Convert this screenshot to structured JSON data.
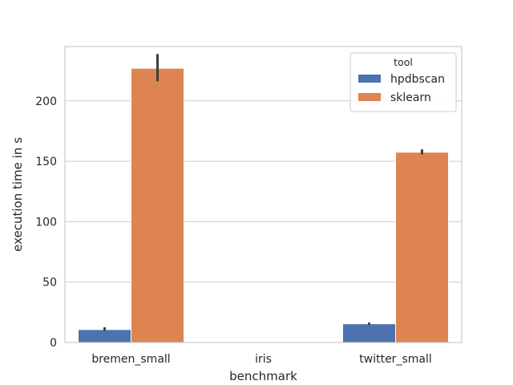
{
  "chart_data": {
    "type": "bar",
    "xlabel": "benchmark",
    "ylabel": "execution time in s",
    "categories": [
      "bremen_small",
      "iris",
      "twitter_small"
    ],
    "y_ticks": [
      0,
      50,
      100,
      150,
      200
    ],
    "ylim": [
      0,
      245
    ],
    "grid": true,
    "legend": {
      "title": "tool",
      "placement": "top-right"
    },
    "series": [
      {
        "name": "hpdbscan",
        "color": "#4c72b0",
        "values": [
          10.7,
          0.05,
          15.5
        ],
        "error": [
          [
            10.5,
            11.8
          ],
          null,
          [
            15.3,
            15.7
          ]
        ]
      },
      {
        "name": "sklearn",
        "color": "#dd8452",
        "values": [
          227,
          0.1,
          157.5
        ],
        "error": [
          [
            217,
            238
          ],
          null,
          [
            156.5,
            159
          ]
        ]
      }
    ]
  }
}
